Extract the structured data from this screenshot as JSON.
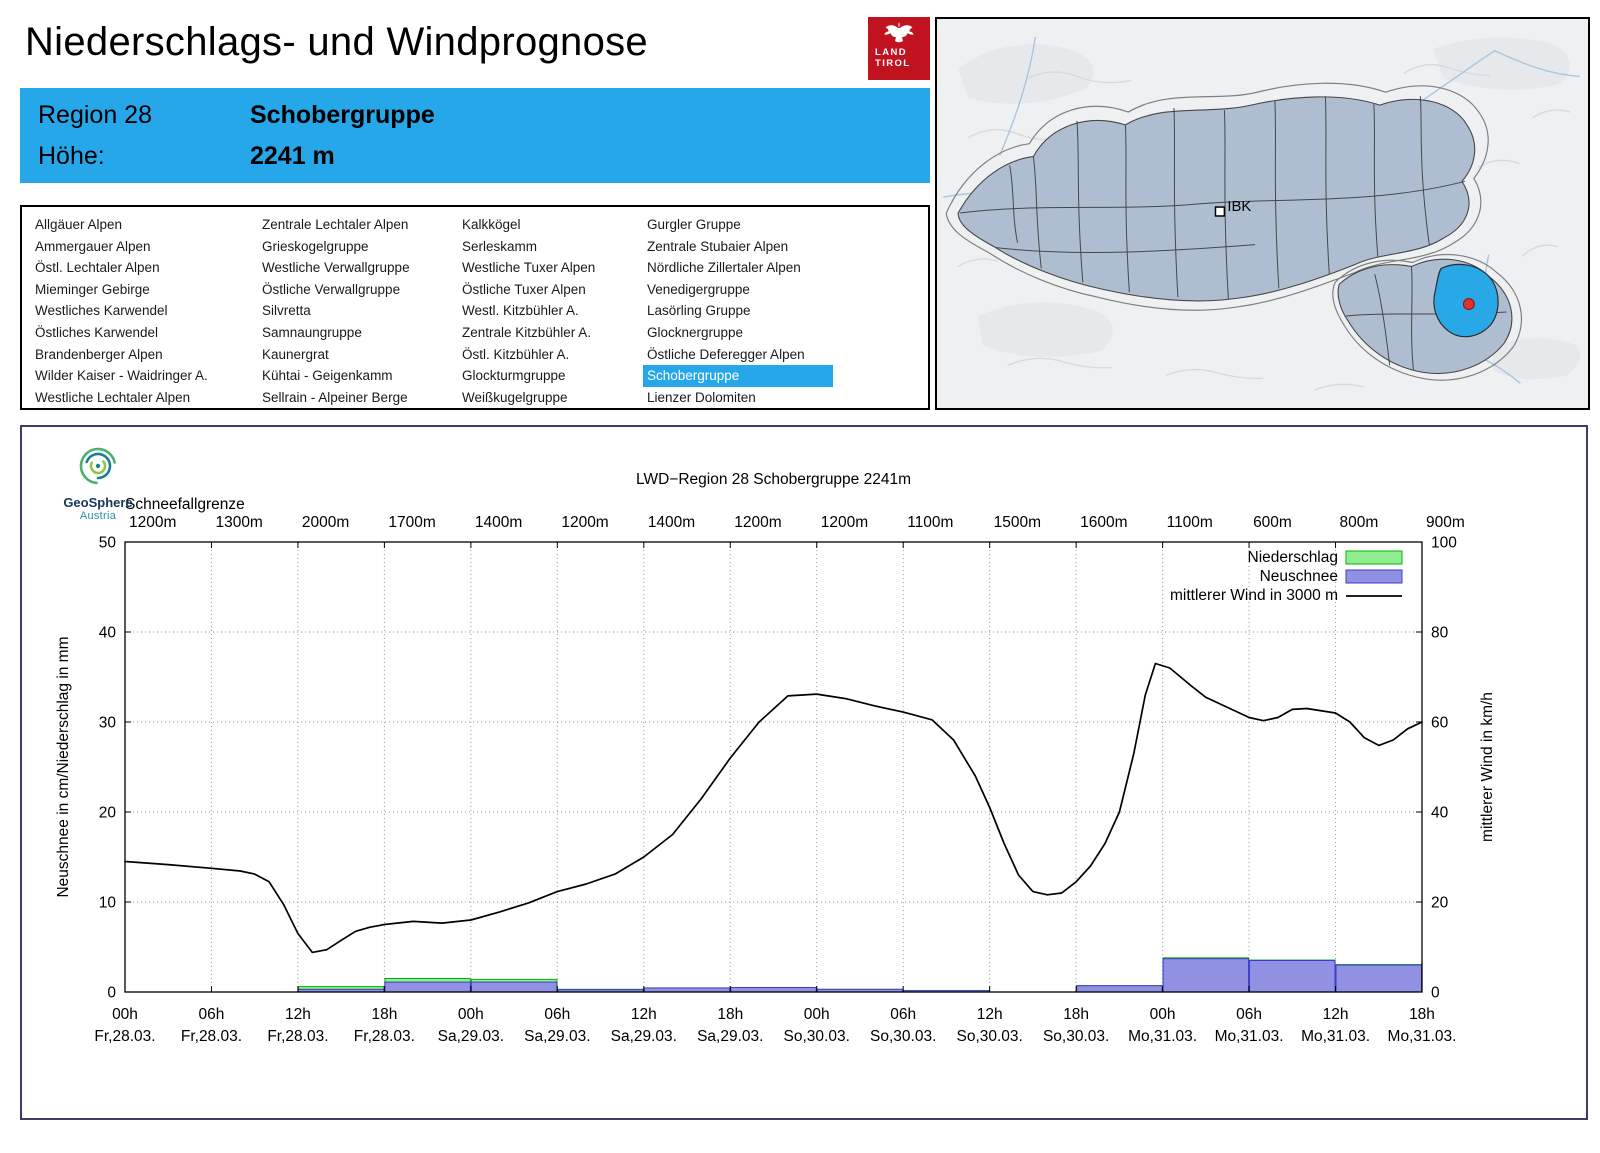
{
  "header": {
    "title": "Niederschlags- und Windprognose",
    "logo": {
      "line1": "LAND",
      "line2": "TIROL"
    }
  },
  "colors": {
    "header_blue": "#26a7ea",
    "map_highlight_blue": "#29a8e8",
    "logo_red": "#c1121f",
    "niederschlag_green": "#90ee90",
    "neuschnee_blue": "#9191e3"
  },
  "region_info": {
    "region_label": "Region 28",
    "region_name": "Schobergruppe",
    "altitude_label": "Höhe:",
    "altitude_value": "2241 m"
  },
  "region_list": {
    "selected": "Schobergruppe",
    "columns": [
      [
        "Allgäuer Alpen",
        "Ammergauer Alpen",
        "Östl. Lechtaler Alpen",
        "Mieminger Gebirge",
        "Westliches Karwendel",
        "Östliches Karwendel",
        "Brandenberger Alpen",
        "Wilder Kaiser - Waidringer A.",
        "Westliche Lechtaler Alpen"
      ],
      [
        "Zentrale Lechtaler Alpen",
        "Grieskogelgruppe",
        "Westliche Verwallgruppe",
        "Östliche Verwallgruppe",
        "Silvretta",
        "Samnaungruppe",
        "Kaunergrat",
        "Kühtai - Geigenkamm",
        "Sellrain - Alpeiner Berge"
      ],
      [
        "Kalkkögel",
        "Serleskamm",
        "Westliche Tuxer Alpen",
        "Östliche Tuxer Alpen",
        "Westl. Kitzbühler A.",
        "Zentrale Kitzbühler A.",
        "Östl. Kitzbühler A.",
        "Glockturmgruppe",
        "Weißkugelgruppe"
      ],
      [
        "Gurgler Gruppe",
        "Zentrale Stubaier Alpen",
        "Nördliche Zillertaler Alpen",
        "Venedigergruppe",
        "Lasörling Gruppe",
        "Glocknergruppe",
        "Östliche Deferegger Alpen",
        "Schobergruppe",
        "Lienzer Dolomiten"
      ]
    ]
  },
  "map": {
    "city_label": "IBK"
  },
  "branding": {
    "geosphere_line1": "GeoSphere",
    "geosphere_line2": "Austria"
  },
  "chart_data": {
    "type": "composite",
    "title": "LWD−Region 28 Schobergruppe 2241m",
    "snowline": {
      "label": "Schneefallgrenze",
      "values_by_tick": [
        "1200m",
        "1300m",
        "2000m",
        "1700m",
        "1400m",
        "1200m",
        "1400m",
        "1200m",
        "1200m",
        "1100m",
        "1500m",
        "1600m",
        "1100m",
        "600m",
        "800m",
        "900m"
      ]
    },
    "axes": {
      "left": {
        "label": "Neuschnee in cm/Niederschlag in mm",
        "range": [
          0,
          50
        ],
        "ticks": [
          0,
          10,
          20,
          30,
          40,
          50
        ]
      },
      "right": {
        "label": "mittlerer Wind in km/h",
        "range": [
          0,
          100
        ],
        "ticks": [
          0,
          20,
          40,
          60,
          80,
          100
        ]
      },
      "x": {
        "range_hours": [
          0,
          90
        ],
        "ticks": [
          {
            "hour": 0,
            "time": "00h",
            "date": "Fr,28.03."
          },
          {
            "hour": 6,
            "time": "06h",
            "date": "Fr,28.03."
          },
          {
            "hour": 12,
            "time": "12h",
            "date": "Fr,28.03."
          },
          {
            "hour": 18,
            "time": "18h",
            "date": "Fr,28.03."
          },
          {
            "hour": 24,
            "time": "00h",
            "date": "Sa,29.03."
          },
          {
            "hour": 30,
            "time": "06h",
            "date": "Sa,29.03."
          },
          {
            "hour": 36,
            "time": "12h",
            "date": "Sa,29.03."
          },
          {
            "hour": 42,
            "time": "18h",
            "date": "Sa,29.03."
          },
          {
            "hour": 48,
            "time": "00h",
            "date": "So,30.03."
          },
          {
            "hour": 54,
            "time": "06h",
            "date": "So,30.03."
          },
          {
            "hour": 60,
            "time": "12h",
            "date": "So,30.03."
          },
          {
            "hour": 66,
            "time": "18h",
            "date": "So,30.03."
          },
          {
            "hour": 72,
            "time": "00h",
            "date": "Mo,31.03."
          },
          {
            "hour": 78,
            "time": "06h",
            "date": "Mo,31.03."
          },
          {
            "hour": 84,
            "time": "12h",
            "date": "Mo,31.03."
          },
          {
            "hour": 90,
            "time": "18h",
            "date": "Mo,31.03."
          }
        ]
      }
    },
    "legend": [
      {
        "label": "Niederschlag",
        "type": "bar",
        "fill": "#90ee90",
        "stroke": "#04b404"
      },
      {
        "label": "Neuschnee",
        "type": "bar",
        "fill": "#9191e3",
        "stroke": "#3c3ccb"
      },
      {
        "label": "mittlerer Wind in 3000 m",
        "type": "line",
        "stroke": "#000000"
      }
    ],
    "series": {
      "bars_6h": [
        {
          "start_hour": 0,
          "niederschlag_mm": 0,
          "neuschnee_cm": 0
        },
        {
          "start_hour": 6,
          "niederschlag_mm": 0,
          "neuschnee_cm": 0
        },
        {
          "start_hour": 12,
          "niederschlag_mm": 0.6,
          "neuschnee_cm": 0.3
        },
        {
          "start_hour": 18,
          "niederschlag_mm": 1.5,
          "neuschnee_cm": 1.1
        },
        {
          "start_hour": 24,
          "niederschlag_mm": 1.4,
          "neuschnee_cm": 1.1
        },
        {
          "start_hour": 30,
          "niederschlag_mm": 0.3,
          "neuschnee_cm": 0.25
        },
        {
          "start_hour": 36,
          "niederschlag_mm": 0.45,
          "neuschnee_cm": 0.45
        },
        {
          "start_hour": 42,
          "niederschlag_mm": 0.5,
          "neuschnee_cm": 0.5
        },
        {
          "start_hour": 48,
          "niederschlag_mm": 0.3,
          "neuschnee_cm": 0.3
        },
        {
          "start_hour": 54,
          "niederschlag_mm": 0.15,
          "neuschnee_cm": 0.15
        },
        {
          "start_hour": 60,
          "niederschlag_mm": 0,
          "neuschnee_cm": 0
        },
        {
          "start_hour": 66,
          "niederschlag_mm": 0.7,
          "neuschnee_cm": 0.7
        },
        {
          "start_hour": 72,
          "niederschlag_mm": 3.8,
          "neuschnee_cm": 3.7
        },
        {
          "start_hour": 78,
          "niederschlag_mm": 3.55,
          "neuschnee_cm": 3.5
        },
        {
          "start_hour": 84,
          "niederschlag_mm": 3.05,
          "neuschnee_cm": 3.0
        }
      ],
      "wind_line_kmh": [
        [
          0,
          29
        ],
        [
          3,
          28.3
        ],
        [
          6,
          27.5
        ],
        [
          8,
          26.9
        ],
        [
          9,
          26.2
        ],
        [
          10,
          24.5
        ],
        [
          11,
          19.5
        ],
        [
          12,
          13
        ],
        [
          13,
          8.8
        ],
        [
          14,
          9.4
        ],
        [
          15,
          11.5
        ],
        [
          16,
          13.5
        ],
        [
          17,
          14.4
        ],
        [
          18,
          15
        ],
        [
          20,
          15.7
        ],
        [
          22,
          15.3
        ],
        [
          24,
          16
        ],
        [
          26,
          17.8
        ],
        [
          28,
          19.8
        ],
        [
          30,
          22.3
        ],
        [
          32,
          24
        ],
        [
          34,
          26.2
        ],
        [
          36,
          30
        ],
        [
          38,
          35
        ],
        [
          40,
          43
        ],
        [
          42,
          52
        ],
        [
          44,
          60
        ],
        [
          46,
          65.8
        ],
        [
          48,
          66.2
        ],
        [
          50,
          65.2
        ],
        [
          52,
          63.6
        ],
        [
          54,
          62.2
        ],
        [
          56,
          60.5
        ],
        [
          57.5,
          56
        ],
        [
          59,
          48
        ],
        [
          60,
          41
        ],
        [
          61,
          33
        ],
        [
          62,
          26
        ],
        [
          63,
          22.3
        ],
        [
          64,
          21.6
        ],
        [
          65,
          22
        ],
        [
          66,
          24.5
        ],
        [
          67,
          28
        ],
        [
          68,
          33
        ],
        [
          69,
          40
        ],
        [
          70,
          53
        ],
        [
          70.8,
          66
        ],
        [
          71.5,
          73
        ],
        [
          72.5,
          72
        ],
        [
          74,
          68
        ],
        [
          75,
          65.5
        ],
        [
          76,
          64
        ],
        [
          78,
          61
        ],
        [
          79,
          60.3
        ],
        [
          80,
          61
        ],
        [
          81,
          62.8
        ],
        [
          82,
          63
        ],
        [
          84,
          62
        ],
        [
          85,
          60
        ],
        [
          86,
          56.5
        ],
        [
          87,
          54.8
        ],
        [
          88,
          56
        ],
        [
          89,
          58.5
        ],
        [
          90,
          60
        ]
      ]
    },
    "grid": true
  }
}
